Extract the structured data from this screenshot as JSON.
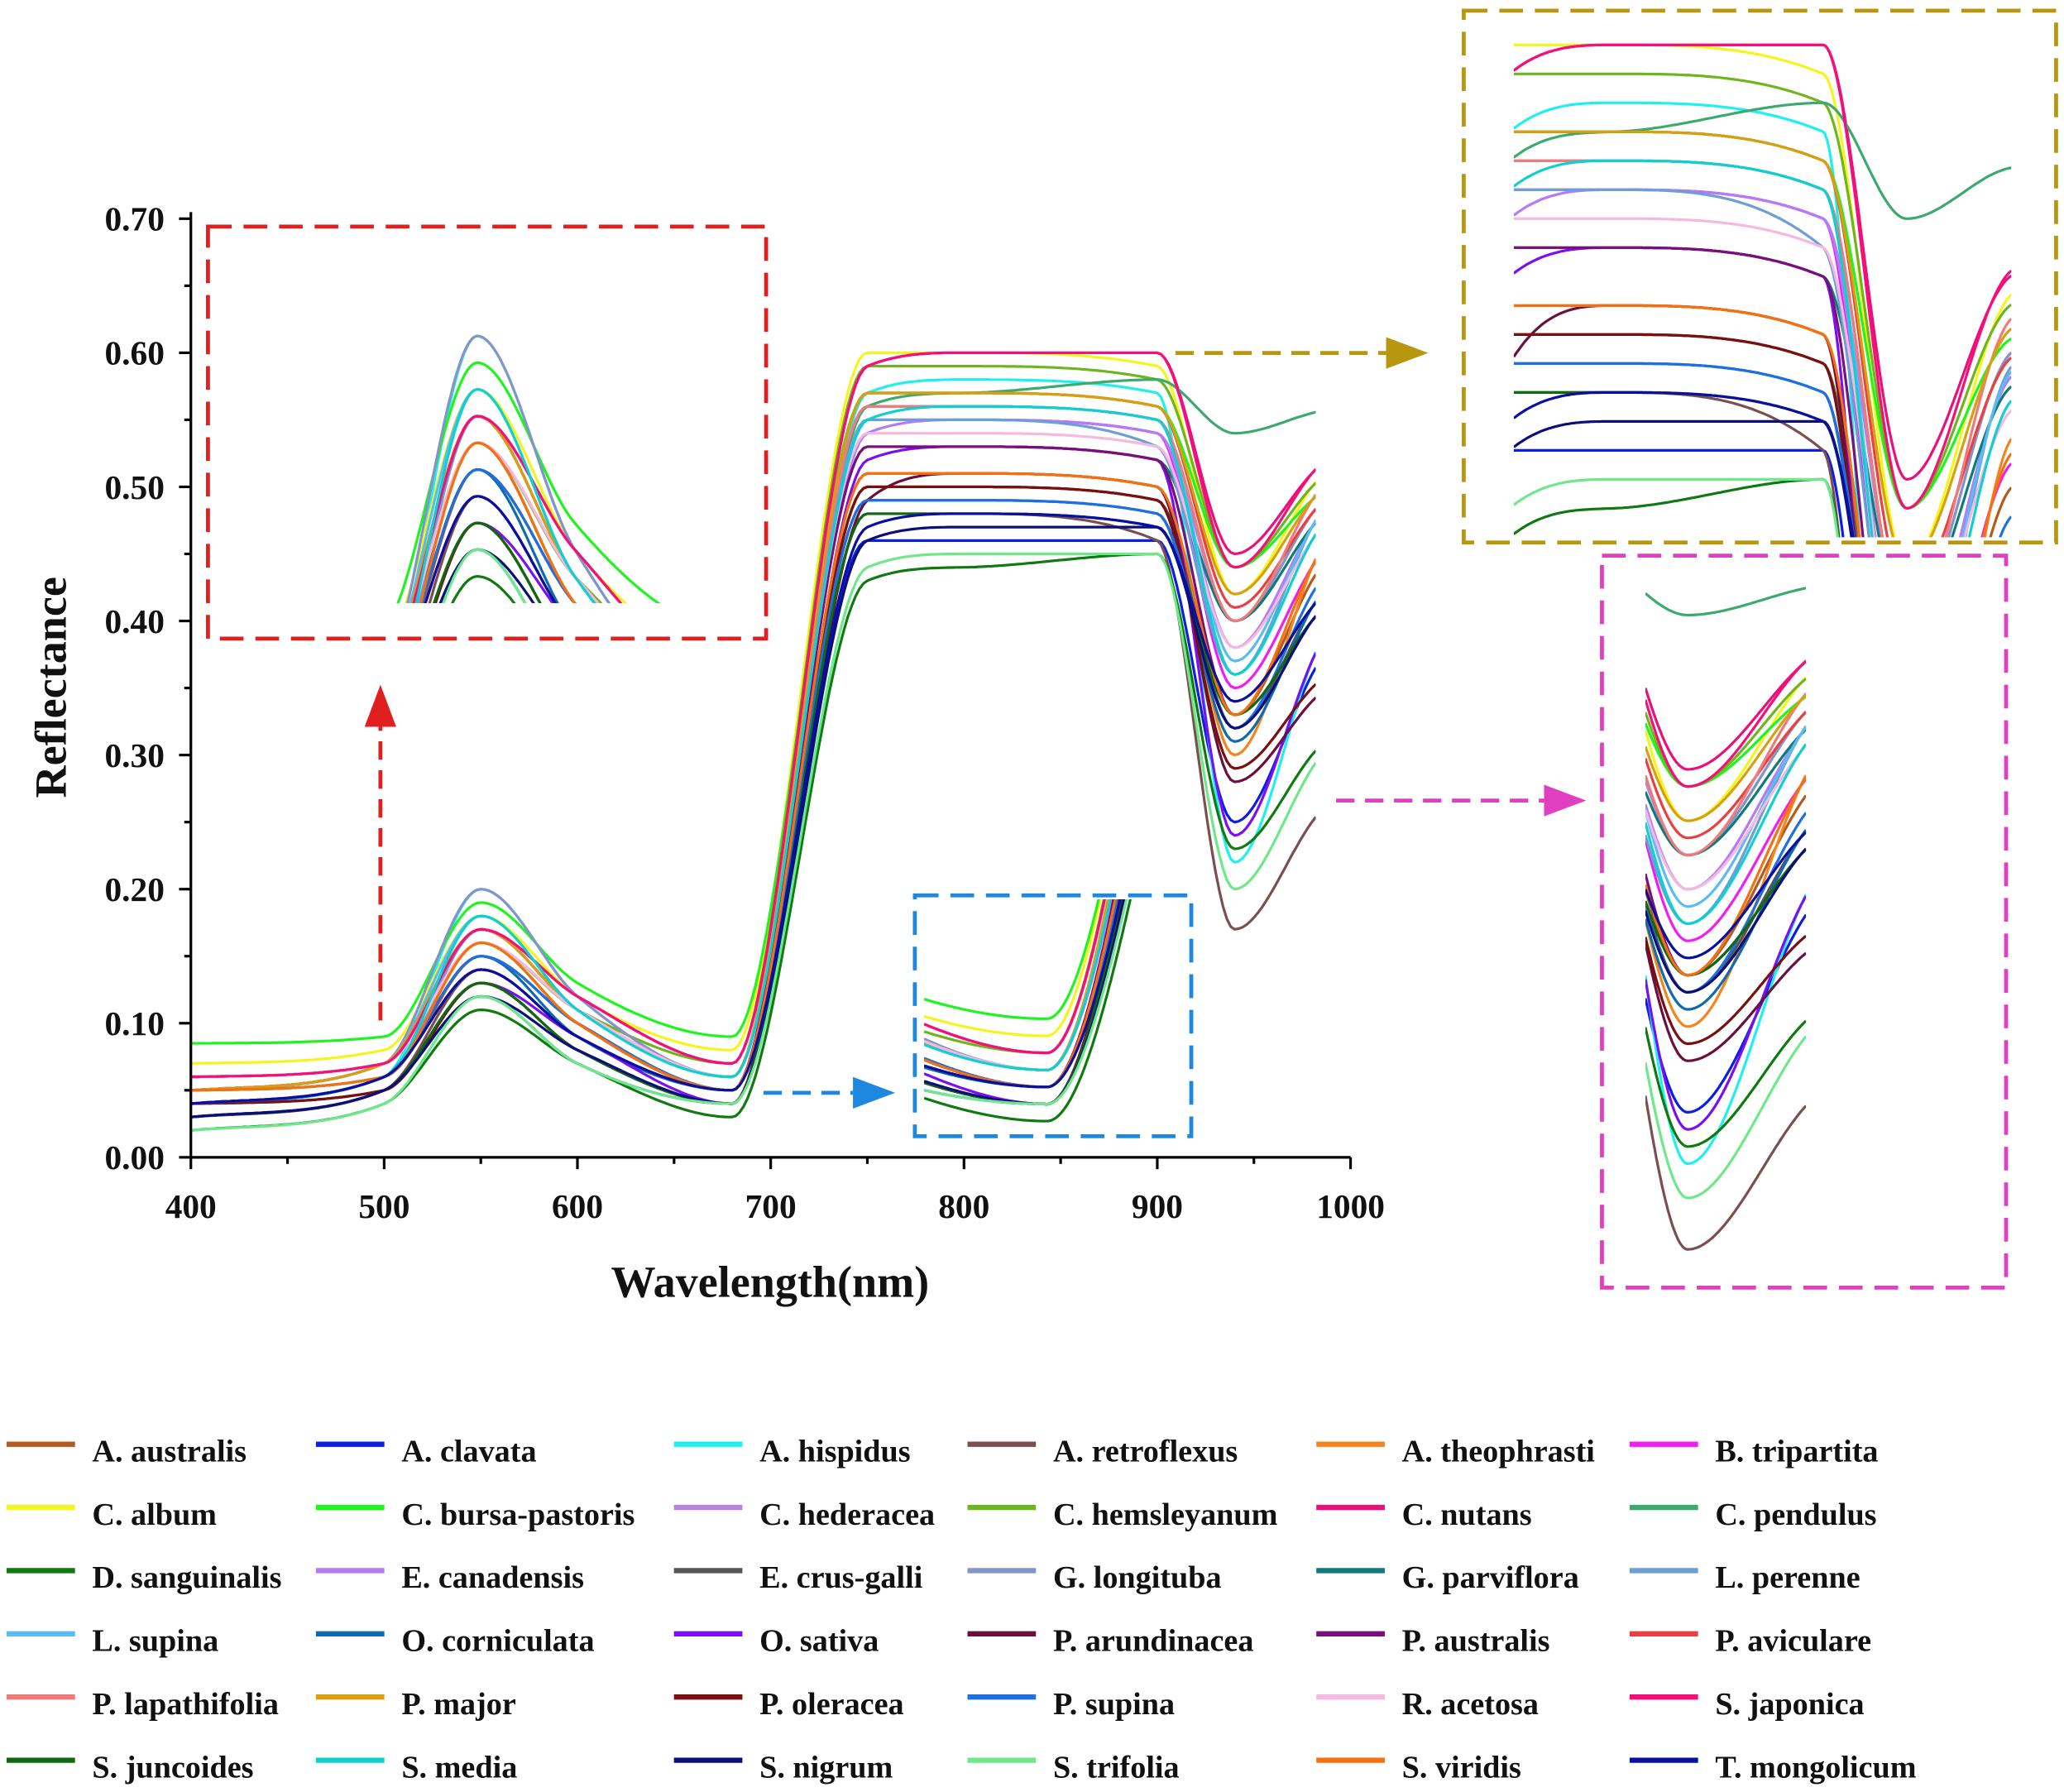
{
  "chart_data": {
    "type": "line",
    "xlabel": "Wavelength(nm)",
    "ylabel": "Reflectance",
    "xlim": [
      400,
      1000
    ],
    "ylim": [
      0.0,
      0.7
    ],
    "xticks": [
      "400",
      "500",
      "600",
      "700",
      "800",
      "900",
      "1000"
    ],
    "yticks": [
      "0.00",
      "0.10",
      "0.20",
      "0.30",
      "0.40",
      "0.50",
      "0.60",
      "0.70"
    ],
    "grid": false,
    "legend_placement": "bottom",
    "insets": [
      {
        "name": "green-peak-zoom",
        "xlim": [
          430,
          680
        ],
        "ylim": [
          0.1,
          0.205
        ],
        "border_color": "#e0201e"
      },
      {
        "name": "red-trough-zoom",
        "xlim": [
          640,
          712
        ],
        "ylim": [
          0.025,
          0.16
        ],
        "border_color": "#1e88e0"
      },
      {
        "name": "nir-plateau-zoom",
        "xlim": [
          752,
          990
        ],
        "ylim": [
          0.43,
          0.61
        ],
        "border_color": "#b8960f"
      },
      {
        "name": "water-band-zoom",
        "xlim": [
          925,
          982
        ],
        "ylim": [
          0.15,
          0.57
        ],
        "border_color": "#e040c0"
      }
    ],
    "x": [
      400,
      500,
      550,
      600,
      680,
      750,
      800,
      900,
      940,
      980
    ],
    "series": [
      {
        "name": "A. australis",
        "color": "#b35a1f",
        "values": [
          0.05,
          0.06,
          0.15,
          0.1,
          0.05,
          0.5,
          0.5,
          0.49,
          0.33,
          0.43
        ]
      },
      {
        "name": "A. clavata",
        "color": "#0a1fe0",
        "values": [
          0.03,
          0.05,
          0.12,
          0.07,
          0.04,
          0.46,
          0.46,
          0.46,
          0.25,
          0.36
        ]
      },
      {
        "name": "A. hispidus",
        "color": "#1ef0f0",
        "values": [
          0.04,
          0.06,
          0.2,
          0.12,
          0.06,
          0.57,
          0.58,
          0.57,
          0.22,
          0.37
        ]
      },
      {
        "name": "A. retroflexus",
        "color": "#7b4f4f",
        "values": [
          0.03,
          0.05,
          0.14,
          0.09,
          0.05,
          0.48,
          0.48,
          0.46,
          0.17,
          0.25
        ]
      },
      {
        "name": "A. theophrasti",
        "color": "#f5841f",
        "values": [
          0.05,
          0.06,
          0.16,
          0.1,
          0.05,
          0.51,
          0.51,
          0.5,
          0.3,
          0.44
        ]
      },
      {
        "name": "B. tripartita",
        "color": "#f01ef0",
        "values": [
          0.05,
          0.07,
          0.17,
          0.11,
          0.06,
          0.55,
          0.55,
          0.54,
          0.35,
          0.44
        ]
      },
      {
        "name": "C. album",
        "color": "#f5f51e",
        "values": [
          0.07,
          0.08,
          0.18,
          0.12,
          0.08,
          0.6,
          0.6,
          0.59,
          0.42,
          0.5
        ]
      },
      {
        "name": "C. bursa-pastoris",
        "color": "#1ef51e",
        "values": [
          0.085,
          0.09,
          0.19,
          0.13,
          0.09,
          0.57,
          0.57,
          0.56,
          0.44,
          0.49
        ]
      },
      {
        "name": "C. hederacea",
        "color": "#b583e0",
        "values": [
          0.05,
          0.07,
          0.17,
          0.11,
          0.06,
          0.55,
          0.55,
          0.54,
          0.4,
          0.48
        ]
      },
      {
        "name": "C. hemsleyanum",
        "color": "#6fb51e",
        "values": [
          0.06,
          0.07,
          0.16,
          0.11,
          0.07,
          0.59,
          0.59,
          0.58,
          0.44,
          0.5
        ]
      },
      {
        "name": "C. nutans",
        "color": "#eb0f7a",
        "values": [
          0.06,
          0.07,
          0.17,
          0.12,
          0.07,
          0.59,
          0.6,
          0.6,
          0.45,
          0.51
        ]
      },
      {
        "name": "C. pendulus",
        "color": "#3caa6e",
        "values": [
          0.06,
          0.07,
          0.17,
          0.11,
          0.06,
          0.56,
          0.57,
          0.58,
          0.54,
          0.555
        ]
      },
      {
        "name": "D. sanguinalis",
        "color": "#0f7a0f",
        "values": [
          0.02,
          0.04,
          0.11,
          0.07,
          0.03,
          0.43,
          0.44,
          0.45,
          0.23,
          0.3
        ]
      },
      {
        "name": "E. canadensis",
        "color": "#b57af5",
        "values": [
          0.05,
          0.07,
          0.17,
          0.11,
          0.06,
          0.54,
          0.55,
          0.54,
          0.38,
          0.47
        ]
      },
      {
        "name": "E. crus-galli",
        "color": "#555555",
        "values": [
          0.04,
          0.06,
          0.15,
          0.1,
          0.05,
          0.5,
          0.5,
          0.49,
          0.32,
          0.41
        ]
      },
      {
        "name": "G. longituba",
        "color": "#8394c8",
        "values": [
          0.05,
          0.07,
          0.2,
          0.12,
          0.06,
          0.56,
          0.56,
          0.55,
          0.4,
          0.48
        ]
      },
      {
        "name": "G. parviflora",
        "color": "#0f7a7a",
        "values": [
          0.04,
          0.06,
          0.16,
          0.1,
          0.05,
          0.53,
          0.53,
          0.52,
          0.4,
          0.47
        ]
      },
      {
        "name": "L. perenne",
        "color": "#6b9fd6",
        "values": [
          0.05,
          0.06,
          0.17,
          0.11,
          0.06,
          0.55,
          0.55,
          0.53,
          0.36,
          0.47
        ]
      },
      {
        "name": "L. supina",
        "color": "#5bbcf5",
        "values": [
          0.05,
          0.07,
          0.18,
          0.11,
          0.06,
          0.56,
          0.56,
          0.55,
          0.37,
          0.47
        ]
      },
      {
        "name": "O. corniculata",
        "color": "#0f6ab0",
        "values": [
          0.04,
          0.06,
          0.15,
          0.09,
          0.05,
          0.49,
          0.49,
          0.48,
          0.31,
          0.41
        ]
      },
      {
        "name": "O. sativa",
        "color": "#7a0ff5",
        "values": [
          0.03,
          0.05,
          0.13,
          0.09,
          0.04,
          0.52,
          0.53,
          0.52,
          0.24,
          0.37
        ]
      },
      {
        "name": "P. arundinacea",
        "color": "#6b0f3c",
        "values": [
          0.04,
          0.05,
          0.13,
          0.08,
          0.04,
          0.49,
          0.51,
          0.5,
          0.28,
          0.34
        ]
      },
      {
        "name": "P. australis",
        "color": "#7a0f7a",
        "values": [
          0.04,
          0.06,
          0.14,
          0.09,
          0.05,
          0.53,
          0.53,
          0.52,
          0.33,
          0.4
        ]
      },
      {
        "name": "P. aviculare",
        "color": "#eb4040",
        "values": [
          0.05,
          0.07,
          0.17,
          0.11,
          0.06,
          0.57,
          0.57,
          0.56,
          0.41,
          0.48
        ]
      },
      {
        "name": "P. lapathifolia",
        "color": "#f07a7a",
        "values": [
          0.06,
          0.07,
          0.16,
          0.11,
          0.06,
          0.56,
          0.56,
          0.55,
          0.4,
          0.49
        ]
      },
      {
        "name": "P. major",
        "color": "#d6a00f",
        "values": [
          0.05,
          0.07,
          0.17,
          0.11,
          0.06,
          0.57,
          0.57,
          0.56,
          0.42,
          0.49
        ]
      },
      {
        "name": "P. oleracea",
        "color": "#7a0f0f",
        "values": [
          0.04,
          0.05,
          0.13,
          0.08,
          0.04,
          0.5,
          0.5,
          0.49,
          0.29,
          0.35
        ]
      },
      {
        "name": "P. supina",
        "color": "#1f6fe0",
        "values": [
          0.04,
          0.06,
          0.15,
          0.1,
          0.05,
          0.49,
          0.49,
          0.48,
          0.32,
          0.42
        ]
      },
      {
        "name": "R. acetosa",
        "color": "#f5b8e0",
        "values": [
          0.06,
          0.07,
          0.16,
          0.11,
          0.06,
          0.54,
          0.54,
          0.53,
          0.38,
          0.46
        ]
      },
      {
        "name": "S. japonica",
        "color": "#f50f7a",
        "values": [
          0.06,
          0.07,
          0.17,
          0.12,
          0.07,
          0.59,
          0.6,
          0.6,
          0.44,
          0.51
        ]
      },
      {
        "name": "S. juncoides",
        "color": "#0f6a0f",
        "values": [
          0.03,
          0.05,
          0.13,
          0.08,
          0.04,
          0.48,
          0.48,
          0.47,
          0.33,
          0.4
        ]
      },
      {
        "name": "S. media",
        "color": "#0fd0d0",
        "values": [
          0.05,
          0.06,
          0.18,
          0.11,
          0.06,
          0.55,
          0.56,
          0.55,
          0.36,
          0.46
        ]
      },
      {
        "name": "S. nigrum",
        "color": "#0a0f7a",
        "values": [
          0.03,
          0.05,
          0.12,
          0.08,
          0.04,
          0.46,
          0.47,
          0.47,
          0.32,
          0.4
        ]
      },
      {
        "name": "S. trifolia",
        "color": "#6fe88a",
        "values": [
          0.02,
          0.04,
          0.12,
          0.07,
          0.04,
          0.44,
          0.45,
          0.45,
          0.2,
          0.29
        ]
      },
      {
        "name": "S. viridis",
        "color": "#f5700f",
        "values": [
          0.05,
          0.06,
          0.16,
          0.1,
          0.05,
          0.51,
          0.51,
          0.5,
          0.33,
          0.44
        ]
      },
      {
        "name": "T. mongolicum",
        "color": "#0a0fa0",
        "values": [
          0.04,
          0.06,
          0.14,
          0.09,
          0.05,
          0.47,
          0.48,
          0.47,
          0.34,
          0.41
        ]
      }
    ]
  }
}
